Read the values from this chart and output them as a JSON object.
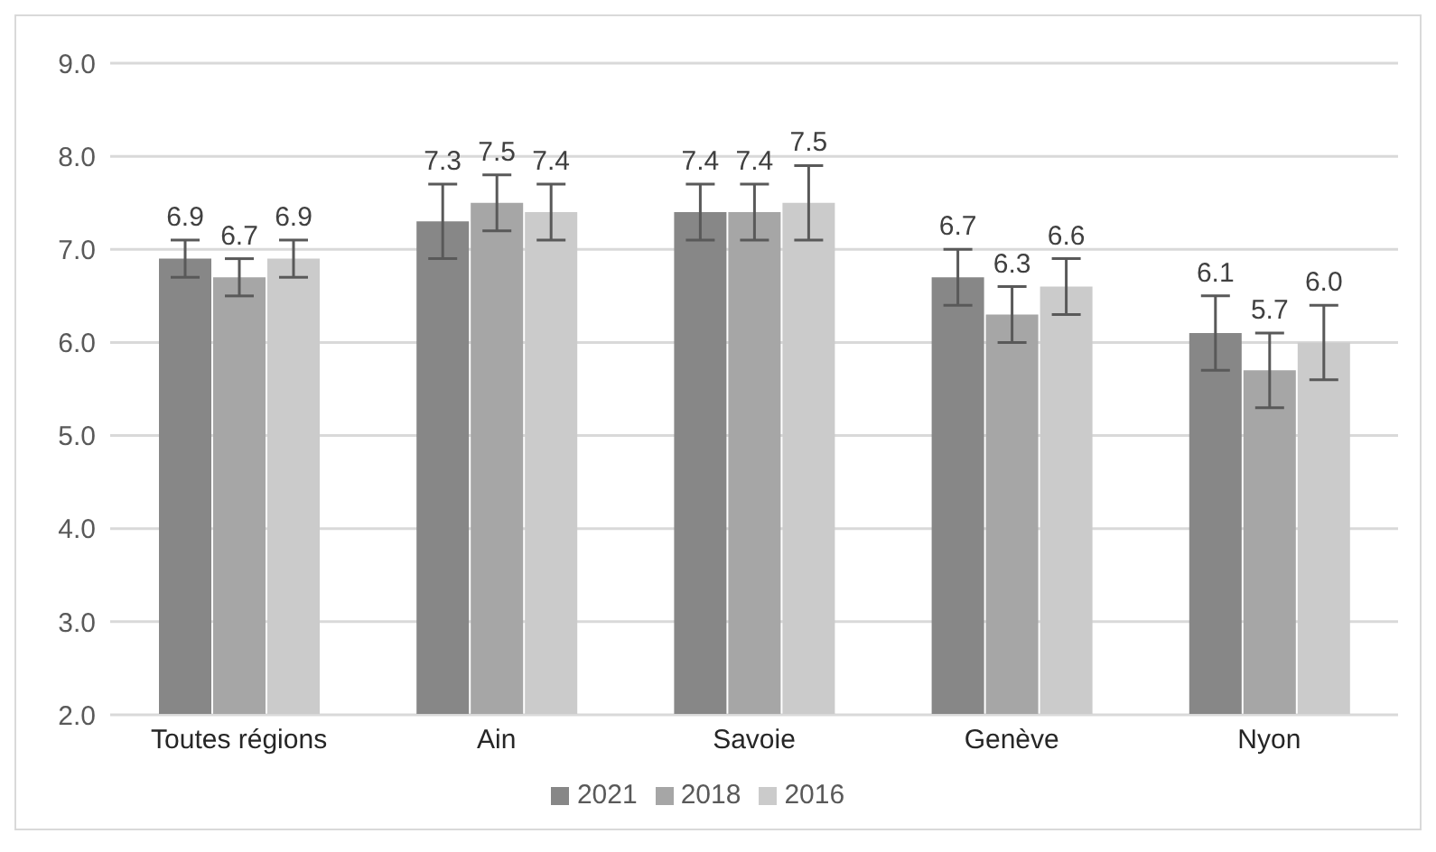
{
  "chart_data": {
    "type": "bar",
    "categories": [
      "Toutes régions",
      "Ain",
      "Savoie",
      "Genève",
      "Nyon"
    ],
    "series": [
      {
        "name": "2021",
        "color": "#878787",
        "values": [
          6.9,
          7.3,
          7.4,
          6.7,
          6.1
        ],
        "errors": [
          0.2,
          0.4,
          0.3,
          0.3,
          0.4
        ],
        "value_labels": [
          "6.9",
          "7.3",
          "7.4",
          "6.7",
          "6.1"
        ]
      },
      {
        "name": "2018",
        "color": "#a6a6a6",
        "values": [
          6.7,
          7.5,
          7.4,
          6.3,
          5.7
        ],
        "errors": [
          0.2,
          0.3,
          0.3,
          0.3,
          0.4
        ],
        "value_labels": [
          "6.7",
          "7.5",
          "7.4",
          "6.3",
          "5.7"
        ]
      },
      {
        "name": "2016",
        "color": "#cbcbcb",
        "values": [
          6.9,
          7.4,
          7.5,
          6.6,
          6.0
        ],
        "errors": [
          0.2,
          0.3,
          0.4,
          0.3,
          0.4
        ],
        "value_labels": [
          "6.9",
          "7.4",
          "7.5",
          "6.6",
          "6.0"
        ]
      }
    ],
    "ylim": [
      2,
      9
    ],
    "yticks": [
      {
        "value": 2,
        "label": "2.0"
      },
      {
        "value": 3,
        "label": "3.0"
      },
      {
        "value": 4,
        "label": "4.0"
      },
      {
        "value": 5,
        "label": "5.0"
      },
      {
        "value": 6,
        "label": "6.0"
      },
      {
        "value": 7,
        "label": "7.0"
      },
      {
        "value": 8,
        "label": "8.0"
      },
      {
        "value": 9,
        "label": "9.0"
      }
    ],
    "grid": "y",
    "legend": "bottom"
  }
}
